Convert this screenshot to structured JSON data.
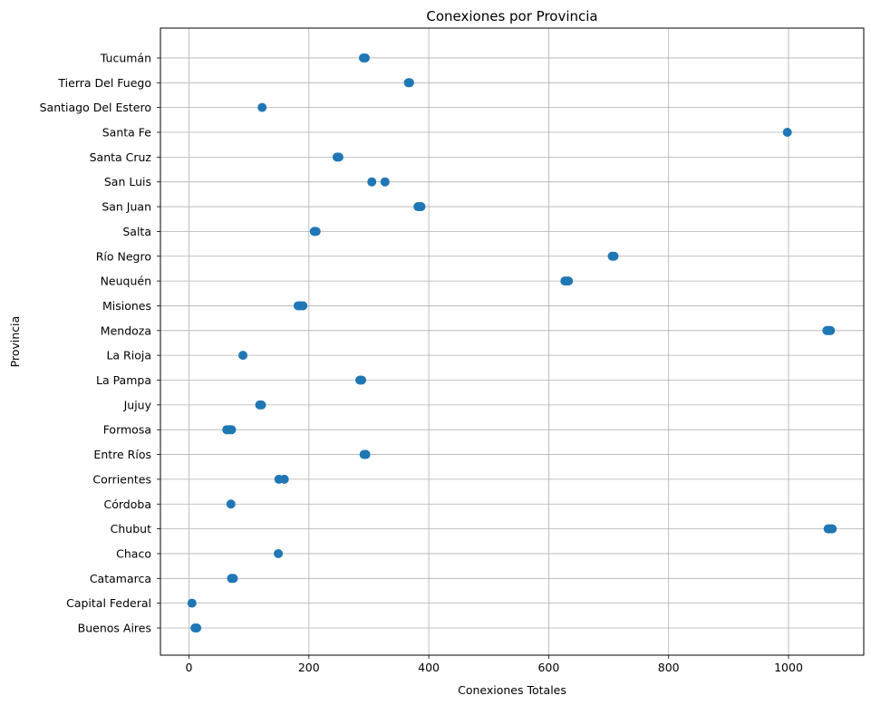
{
  "chart_data": {
    "type": "scatter",
    "title": "Conexiones por Provincia",
    "xlabel": "Conexiones Totales",
    "ylabel": "Provincia",
    "xlim": [
      -48,
      1122
    ],
    "xticks": [
      0,
      200,
      400,
      600,
      800,
      1000
    ],
    "grid": true,
    "marker_color": "#1f77b4",
    "categories": [
      "Buenos Aires",
      "Capital Federal",
      "Catamarca",
      "Chaco",
      "Chubut",
      "Córdoba",
      "Corrientes",
      "Entre Ríos",
      "Formosa",
      "Jujuy",
      "La Pampa",
      "La Rioja",
      "Mendoza",
      "Misiones",
      "Neuquén",
      "Río Negro",
      "Salta",
      "San Juan",
      "San Luis",
      "Santa Cruz",
      "Santa Fe",
      "Santiago Del Estero",
      "Tierra Del Fuego",
      "Tucumán"
    ],
    "points": [
      {
        "y": "Buenos Aires",
        "x": [
          10,
          13
        ]
      },
      {
        "y": "Capital Federal",
        "x": [
          5
        ]
      },
      {
        "y": "Catamarca",
        "x": [
          71,
          74
        ]
      },
      {
        "y": "Chaco",
        "x": [
          149
        ]
      },
      {
        "y": "Chubut",
        "x": [
          1066,
          1068,
          1071,
          1073
        ]
      },
      {
        "y": "Córdoba",
        "x": [
          70
        ]
      },
      {
        "y": "Corrientes",
        "x": [
          150,
          159
        ]
      },
      {
        "y": "Entre Ríos",
        "x": [
          292,
          295
        ]
      },
      {
        "y": "Formosa",
        "x": [
          63,
          67,
          71
        ]
      },
      {
        "y": "Jujuy",
        "x": [
          118,
          121
        ]
      },
      {
        "y": "La Pampa",
        "x": [
          285,
          288
        ]
      },
      {
        "y": "La Rioja",
        "x": [
          90
        ]
      },
      {
        "y": "Mendoza",
        "x": [
          1064,
          1066,
          1068,
          1070
        ]
      },
      {
        "y": "Misiones",
        "x": [
          182,
          186,
          190
        ]
      },
      {
        "y": "Neuquén",
        "x": [
          627,
          630,
          633
        ]
      },
      {
        "y": "Río Negro",
        "x": [
          706,
          709
        ]
      },
      {
        "y": "Salta",
        "x": [
          209,
          212
        ]
      },
      {
        "y": "San Juan",
        "x": [
          382,
          385,
          387
        ]
      },
      {
        "y": "San Luis",
        "x": [
          305,
          327
        ]
      },
      {
        "y": "Santa Cruz",
        "x": [
          247,
          250
        ]
      },
      {
        "y": "Santa Fe",
        "x": [
          998
        ]
      },
      {
        "y": "Santiago Del Estero",
        "x": [
          122
        ]
      },
      {
        "y": "Tierra Del Fuego",
        "x": [
          366,
          368
        ]
      },
      {
        "y": "Tucumán",
        "x": [
          291,
          294
        ]
      }
    ]
  }
}
